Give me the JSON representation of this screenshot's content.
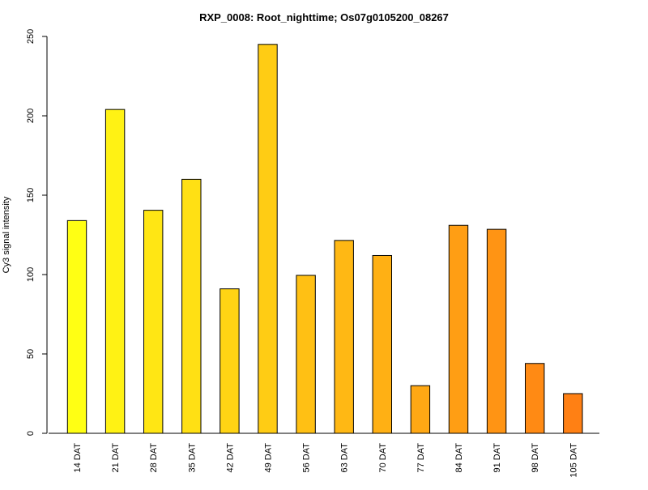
{
  "chart_data": {
    "type": "bar",
    "title": "RXP_0008: Root_nighttime; Os07g0105200_08267",
    "xlabel": "",
    "ylabel": "Cy3 signal intensity",
    "ylim": [
      0,
      250
    ],
    "yticks": [
      "0",
      "50",
      "100",
      "150",
      "200",
      "250"
    ],
    "categories": [
      "14 DAT",
      "21 DAT",
      "28 DAT",
      "35 DAT",
      "42 DAT",
      "49 DAT",
      "56 DAT",
      "63 DAT",
      "70 DAT",
      "77 DAT",
      "84 DAT",
      "91 DAT",
      "98 DAT",
      "105 DAT"
    ],
    "values": [
      134,
      204,
      140.5,
      160,
      91,
      245,
      99.5,
      121.5,
      112,
      30,
      131,
      128.5,
      44,
      25
    ],
    "bar_colors": [
      "#FFFF14",
      "#FFF214",
      "#FFE614",
      "#FFE014",
      "#FFD414",
      "#FFCC14",
      "#FFC014",
      "#FFB814",
      "#FFB014",
      "#FFA814",
      "#FF9E14",
      "#FF9414",
      "#FF8A14",
      "#FF8014"
    ],
    "grid": false,
    "legend": "none"
  }
}
